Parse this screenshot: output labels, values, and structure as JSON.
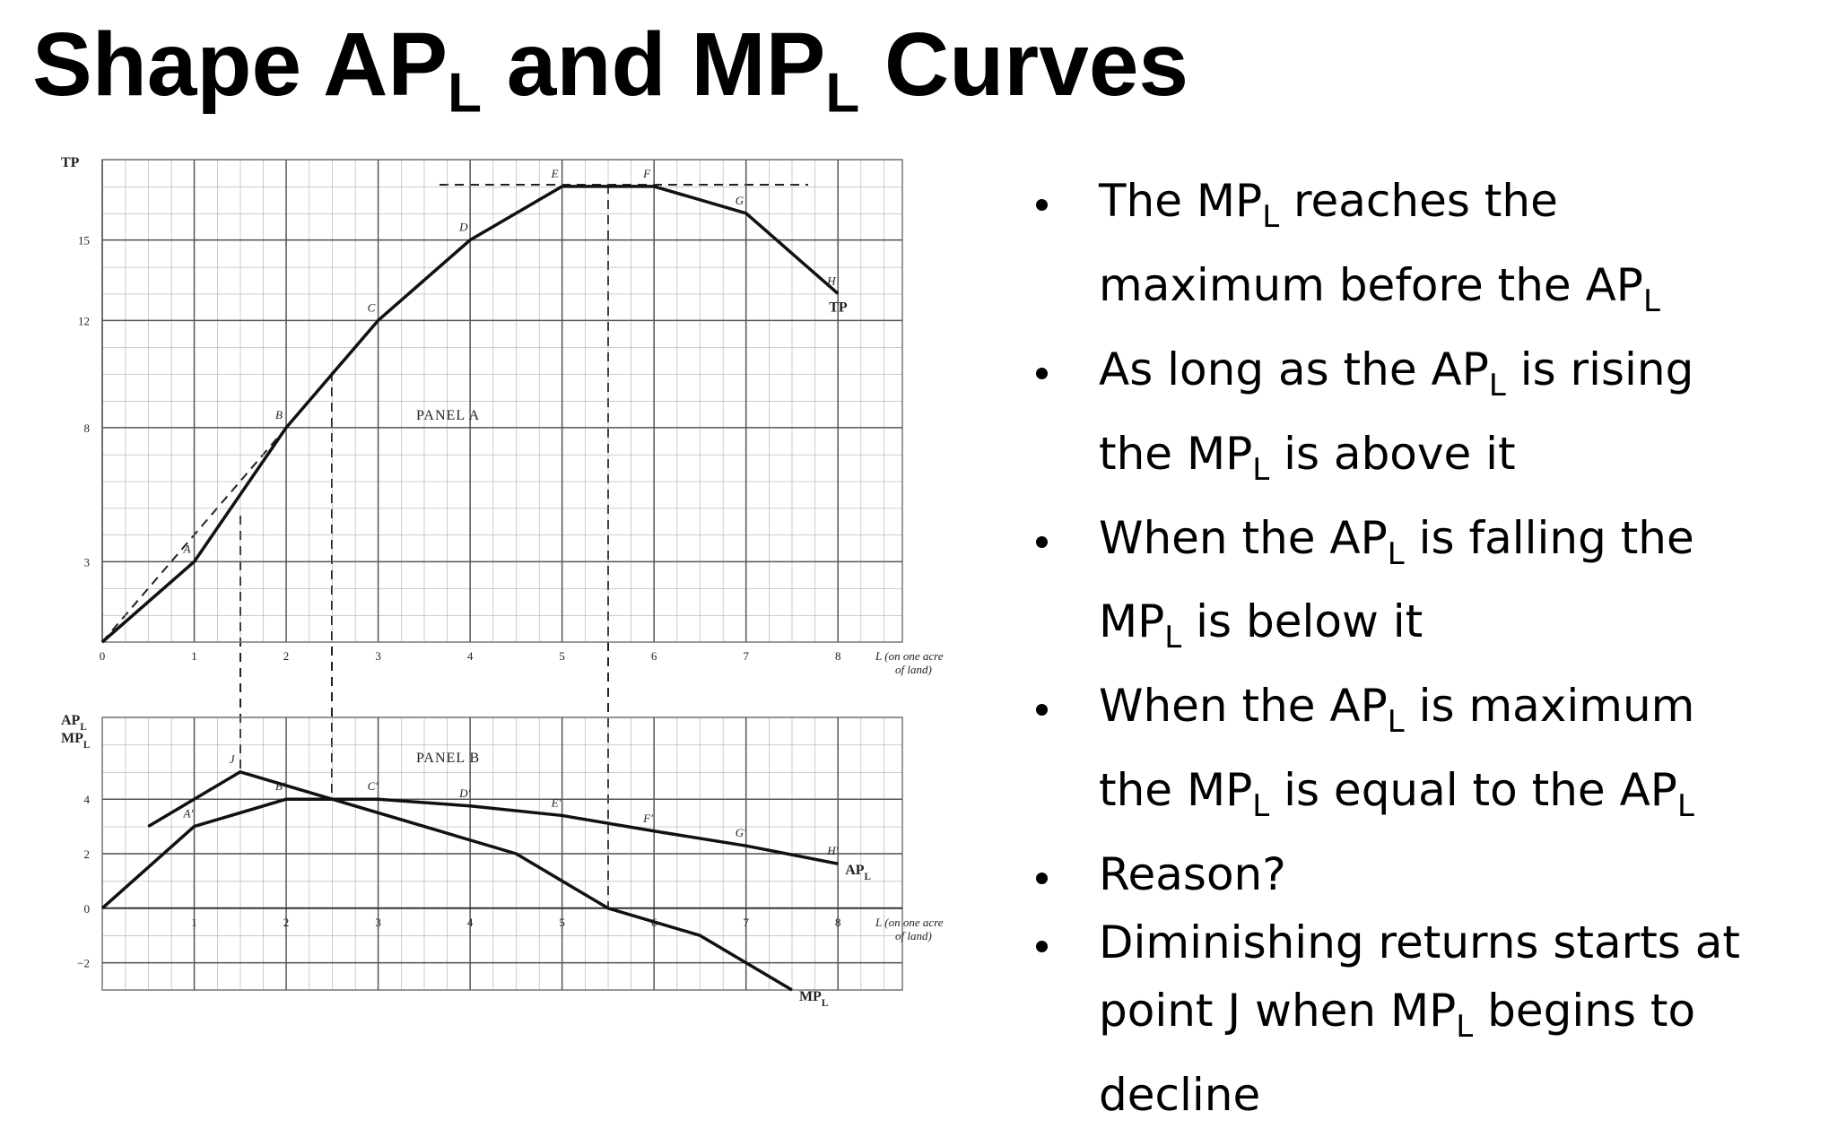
{
  "title": [
    {
      "text": "Shape AP"
    },
    {
      "text": "L",
      "sub": true
    },
    {
      "text": " and MP"
    },
    {
      "text": "L",
      "sub": true
    },
    {
      "text": " Curves"
    }
  ],
  "bullets": [
    [
      [
        {
          "text": "The MP"
        },
        {
          "text": "L",
          "sub": true
        },
        {
          "text": " reaches the"
        }
      ],
      [
        {
          "text": "maximum before the AP"
        },
        {
          "text": "L",
          "sub": true
        }
      ]
    ],
    [
      [
        {
          "text": "As long as the AP"
        },
        {
          "text": "L",
          "sub": true
        },
        {
          "text": " is rising"
        }
      ],
      [
        {
          "text": "the MP"
        },
        {
          "text": "L",
          "sub": true
        },
        {
          "text": " is above it"
        }
      ]
    ],
    [
      [
        {
          "text": "When the AP"
        },
        {
          "text": "L",
          "sub": true
        },
        {
          "text": " is falling the"
        }
      ],
      [
        {
          "text": "MP"
        },
        {
          "text": "L",
          "sub": true
        },
        {
          "text": " is below it"
        }
      ]
    ],
    [
      [
        {
          "text": "When the AP"
        },
        {
          "text": "L",
          "sub": true
        },
        {
          "text": " is maximum"
        }
      ],
      [
        {
          "text": "the MP"
        },
        {
          "text": "L",
          "sub": true
        },
        {
          "text": " is equal to the AP"
        },
        {
          "text": "L",
          "sub": true
        }
      ]
    ],
    [
      [
        {
          "text": "Reason?"
        }
      ]
    ],
    [
      [
        {
          "text": "Diminishing returns starts at"
        }
      ],
      [
        {
          "text": "point J when MP"
        },
        {
          "text": "L",
          "sub": true
        },
        {
          "text": " begins to"
        }
      ],
      [
        {
          "text": "decline"
        }
      ]
    ]
  ],
  "chart_data": [
    {
      "type": "line",
      "title": "PANEL A",
      "ylabel": [
        [
          {
            "text": "TP"
          }
        ]
      ],
      "xlabel": [
        "L (on one acre",
        "of land)"
      ],
      "xlim": [
        0,
        8.7
      ],
      "ylim": [
        0,
        18
      ],
      "xticks": [
        0,
        1,
        2,
        3,
        4,
        5,
        6,
        7,
        8
      ],
      "yticks": [
        3,
        8,
        12,
        15
      ],
      "grid": true,
      "series": [
        {
          "name": [
            {
              "text": "TP"
            }
          ],
          "color": "#111111",
          "x": [
            0,
            1,
            2,
            3,
            4,
            5,
            6,
            7,
            8
          ],
          "values": [
            0,
            3,
            8,
            12,
            15,
            17,
            17,
            16,
            13
          ],
          "point_labels": [
            null,
            "A",
            "B",
            "C",
            "D",
            "E",
            "F",
            "G",
            "H"
          ]
        }
      ]
    },
    {
      "type": "line",
      "title": "PANEL B",
      "ylabel": [
        [
          {
            "text": "AP"
          },
          {
            "text": "L",
            "sub": true
          }
        ],
        [
          {
            "text": "MP"
          },
          {
            "text": "L",
            "sub": true
          }
        ]
      ],
      "xlabel": [
        "L (on one acre",
        "of land)"
      ],
      "xlim": [
        0,
        8.7
      ],
      "ylim": [
        -3,
        7
      ],
      "xticks": [
        1,
        2,
        3,
        4,
        5,
        6,
        7,
        8
      ],
      "yticks": [
        {
          "value": -2,
          "label": "−2"
        },
        0,
        2,
        4
      ],
      "grid": true,
      "series": [
        {
          "name": [
            {
              "text": "AP"
            },
            {
              "text": "L",
              "sub": true
            }
          ],
          "color": "#111111",
          "x": [
            0,
            1,
            2,
            3,
            4,
            5,
            6,
            7,
            8
          ],
          "values": [
            0,
            3,
            4,
            4,
            3.75,
            3.4,
            2.83,
            2.29,
            1.63
          ],
          "point_labels": [
            null,
            "A′",
            "B′",
            "C′",
            "D′",
            "E′",
            "F′",
            "G′",
            "H′"
          ]
        },
        {
          "name": [
            {
              "text": "MP"
            },
            {
              "text": "L",
              "sub": true
            }
          ],
          "color": "#111111",
          "x": [
            0.5,
            1.5,
            2.5,
            3.5,
            4.5,
            5.5,
            6.5,
            7.5
          ],
          "values": [
            3,
            5,
            4,
            3,
            2,
            0,
            -1,
            -3
          ],
          "point_labels": [
            null,
            "J",
            null,
            null,
            null,
            null,
            null,
            null
          ]
        }
      ]
    }
  ]
}
